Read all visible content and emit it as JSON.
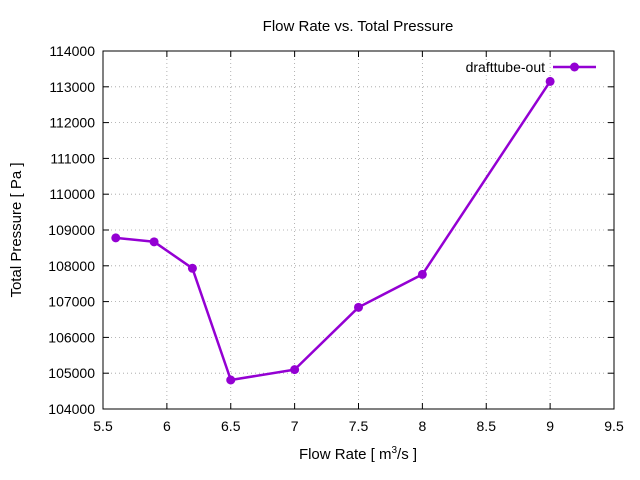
{
  "chart_data": {
    "type": "line",
    "title": "Flow Rate vs. Total Pressure",
    "xlabel": "Flow Rate [ m3/s ]",
    "xlabel_parts": {
      "before": "Flow Rate [ m",
      "sup": "3",
      "after": "/s ]"
    },
    "ylabel": "Total Pressure [ Pa ]",
    "xlim": [
      5.5,
      9.5
    ],
    "ylim": [
      104000,
      114000
    ],
    "xticks": [
      5.5,
      6,
      6.5,
      7,
      7.5,
      8,
      8.5,
      9,
      9.5
    ],
    "xtick_labels": [
      "5.5",
      "6",
      "6.5",
      "7",
      "7.5",
      "8",
      "8.5",
      "9",
      "9.5"
    ],
    "yticks": [
      104000,
      105000,
      106000,
      107000,
      108000,
      109000,
      110000,
      111000,
      112000,
      113000,
      114000
    ],
    "ytick_labels": [
      "104000",
      "105000",
      "106000",
      "107000",
      "108000",
      "109000",
      "110000",
      "111000",
      "112000",
      "113000",
      "114000"
    ],
    "grid": true,
    "legend_position": "top-right",
    "series": [
      {
        "name": "drafttube-out",
        "color": "#9400d3",
        "marker": "circle",
        "x": [
          5.6,
          5.9,
          6.2,
          6.5,
          7.0,
          7.5,
          8.0,
          9.0
        ],
        "y": [
          108780,
          108670,
          107930,
          104810,
          105100,
          106840,
          107760,
          113150
        ]
      }
    ]
  }
}
